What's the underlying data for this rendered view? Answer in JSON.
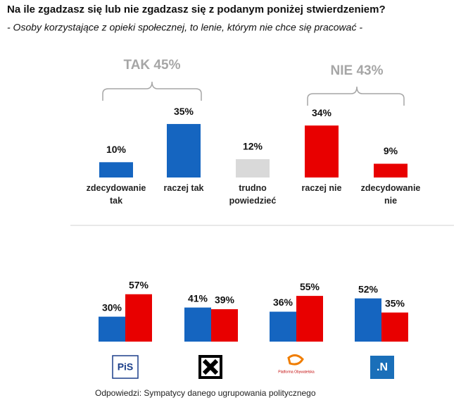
{
  "title": "Na ile zgadzasz się lub nie zgadzasz się z podanym poniżej stwierdzeniem?",
  "subtitle": "- Osoby korzystające z opieki społecznej, to lenie, którym nie chce się pracować -",
  "chart_data": [
    {
      "type": "bar",
      "categories": [
        "zdecydowanie tak",
        "raczej tak",
        "trudno powiedzieć",
        "raczej nie",
        "zdecydowanie nie"
      ],
      "values": [
        10,
        35,
        12,
        34,
        9
      ],
      "value_labels": [
        "10%",
        "35%",
        "12%",
        "34%",
        "9%"
      ],
      "colors": [
        "#1565c0",
        "#1565c0",
        "#d9d9d9",
        "#e80000",
        "#e80000"
      ],
      "annotations": [
        "TAK 45%",
        "NIE 43%"
      ]
    },
    {
      "type": "grouped_bar",
      "categories": [
        "PiS",
        null,
        "Platforma Obywatelska",
        ".N"
      ],
      "series": [
        {
          "color": "#1565c0",
          "values": [
            30,
            41,
            36,
            52
          ],
          "value_labels": [
            "30%",
            "41%",
            "36%",
            "52%"
          ]
        },
        {
          "color": "#e80000",
          "values": [
            57,
            39,
            55,
            35
          ],
          "value_labels": [
            "57%",
            "39%",
            "55%",
            "35%"
          ]
        }
      ],
      "note": "Odpowiedzi: Sympatycy danego ugrupowania politycznego"
    }
  ]
}
